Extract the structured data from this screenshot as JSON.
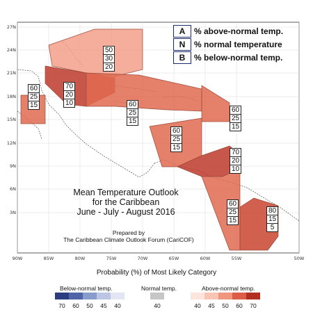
{
  "map": {
    "lat_ticks": [
      "27N",
      "24N",
      "21N",
      "18N",
      "15N",
      "12N",
      "9N",
      "6N",
      "3N"
    ],
    "lon_ticks": [
      "90W",
      "85W",
      "80W",
      "75W",
      "70W",
      "65W",
      "60W",
      "55W",
      "50W"
    ]
  },
  "abn_legend": [
    {
      "key": "A",
      "text": "% above-normal temp."
    },
    {
      "key": "N",
      "text": "% normal temperature"
    },
    {
      "key": "B",
      "text": "% below-normal temp."
    }
  ],
  "regions": [
    {
      "name": "bahamas",
      "above": "50",
      "normal": "30",
      "below": "20",
      "color": "#f2a08a"
    },
    {
      "name": "belize-honduras",
      "above": "60",
      "normal": "25",
      "below": "15",
      "color": "#e06a50"
    },
    {
      "name": "cuba-jamaica",
      "above": "70",
      "normal": "20",
      "below": "10",
      "color": "#be3a2c"
    },
    {
      "name": "hispaniola",
      "above": "60",
      "normal": "25",
      "below": "15",
      "color": "#e06a50"
    },
    {
      "name": "leeward-islands",
      "above": "60",
      "normal": "25",
      "below": "15",
      "color": "#e06a50"
    },
    {
      "name": "central-coast",
      "above": "60",
      "normal": "25",
      "below": "15",
      "color": "#e06a50"
    },
    {
      "name": "windward-islands",
      "above": "70",
      "normal": "20",
      "below": "10",
      "color": "#be3a2c"
    },
    {
      "name": "guyana",
      "above": "60",
      "normal": "25",
      "below": "15",
      "color": "#e06a50"
    },
    {
      "name": "suriname",
      "above": "80",
      "normal": "15",
      "below": "5",
      "color": "#c9442f"
    }
  ],
  "title": [
    "Mean Temperature Outlook",
    "for the Caribbean",
    "June - July - August 2016"
  ],
  "credit": [
    "Prepared by",
    "The Caribbean Climate Outlook Forum (CariCOF)"
  ],
  "scale": {
    "title": "Probability (%) of Most Likely Category",
    "below": {
      "label": "Below-normal temp.",
      "values": [
        "70",
        "60",
        "50",
        "45",
        "40"
      ],
      "colors": [
        "#2b3d7e",
        "#5064a8",
        "#8a9ccc",
        "#bcc6e4",
        "#e2e6f3"
      ]
    },
    "normal": {
      "label": "Normal temp.",
      "values": [
        "40"
      ],
      "colors": [
        "#c6c6c6"
      ]
    },
    "above": {
      "label": "Above-normal temp.",
      "values": [
        "40",
        "45",
        "50",
        "60",
        "70"
      ],
      "colors": [
        "#fde4dc",
        "#f8c4b4",
        "#f0957e",
        "#dc5d45",
        "#b32e22"
      ]
    }
  }
}
